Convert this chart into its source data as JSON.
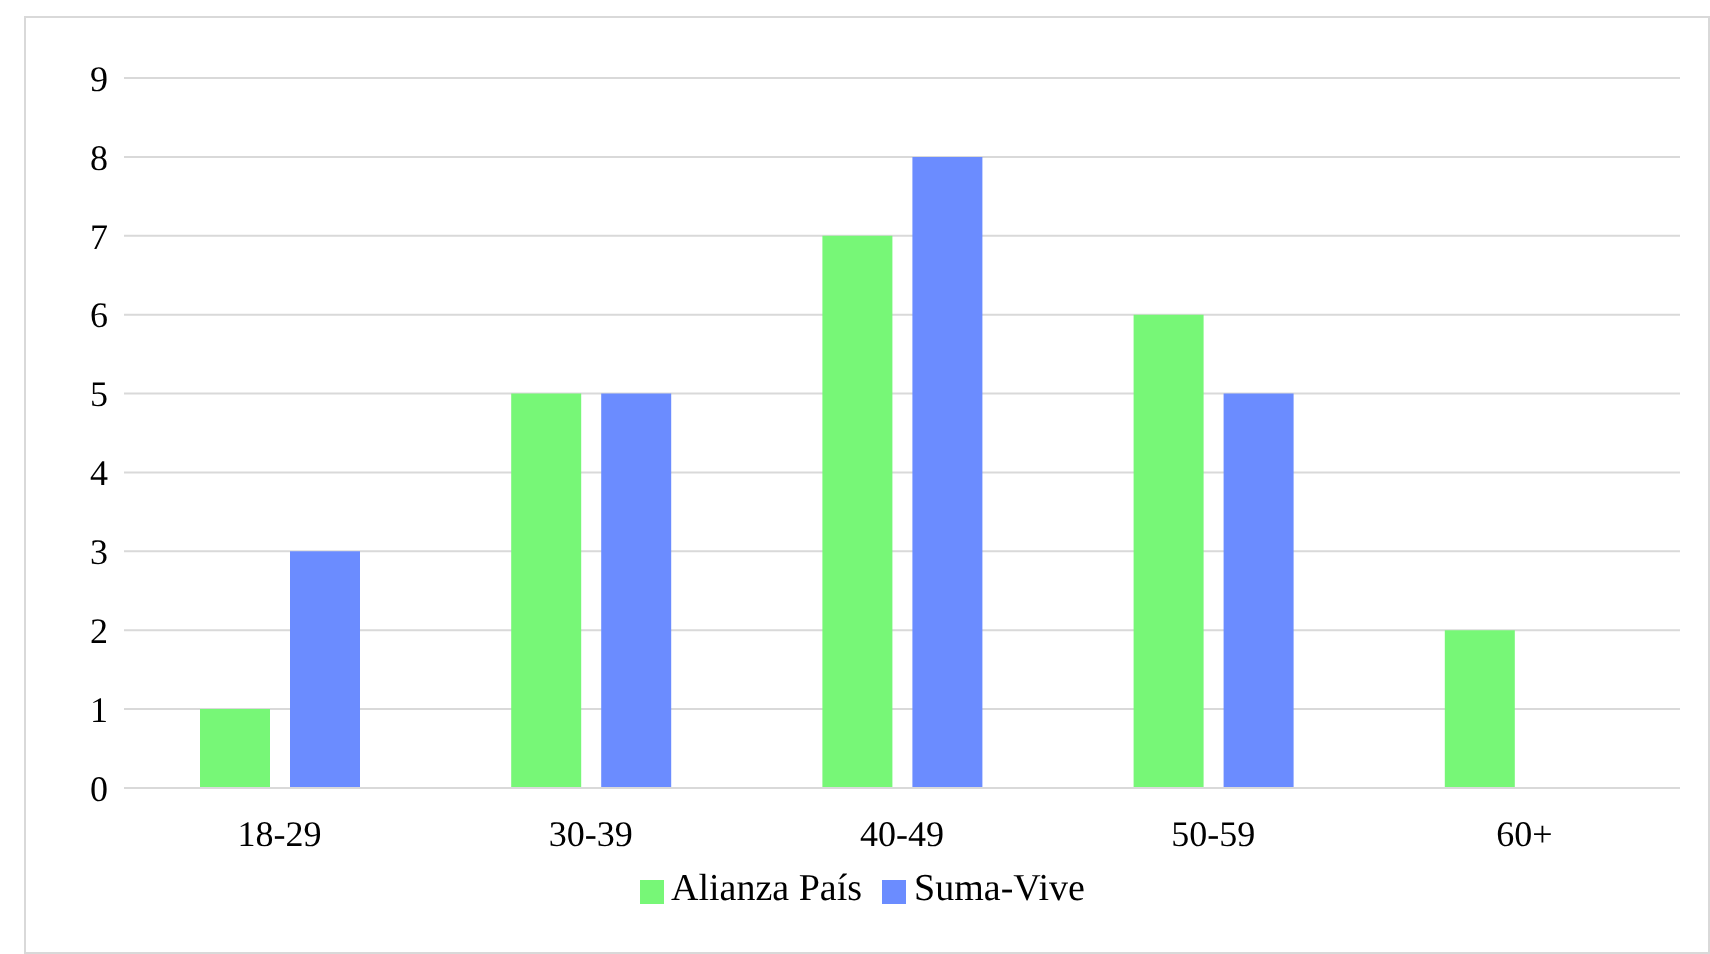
{
  "chart_data": {
    "type": "bar",
    "categories": [
      "18-29",
      "30-39",
      "40-49",
      "50-59",
      "60+"
    ],
    "series": [
      {
        "name": "Alianza País",
        "color": "#77f777",
        "values": [
          1,
          5,
          7,
          6,
          2
        ]
      },
      {
        "name": "Suma-Vive",
        "color": "#6b8cff",
        "values": [
          3,
          5,
          8,
          5,
          0
        ]
      }
    ],
    "ylim": [
      0,
      9
    ],
    "yticks": [
      0,
      1,
      2,
      3,
      4,
      5,
      6,
      7,
      8,
      9
    ],
    "grid": "y",
    "legend": "bottom"
  }
}
